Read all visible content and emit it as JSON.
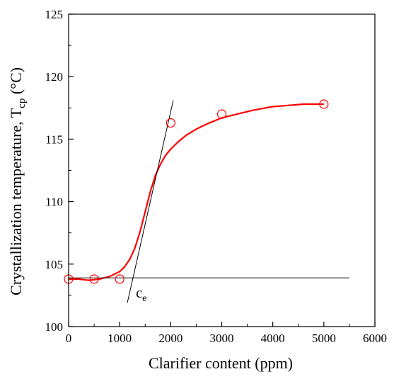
{
  "chart_data": {
    "type": "scatter",
    "title": "",
    "xlabel": "Clarifier content (ppm)",
    "ylabel": {
      "main": "Crystallization temperature, T",
      "subscript": "cp",
      "unit": "(°C)"
    },
    "xlim": [
      0,
      6000
    ],
    "ylim": [
      100,
      125
    ],
    "xticks": [
      0,
      1000,
      2000,
      3000,
      4000,
      5000,
      6000
    ],
    "yticks": [
      100,
      105,
      110,
      115,
      120,
      125
    ],
    "grid": false,
    "legend": "none",
    "series": [
      {
        "kind": "markers",
        "marker": "open-circle",
        "color": "#ff0000",
        "x": [
          0,
          500,
          1000,
          2000,
          3000,
          5000
        ],
        "y": [
          103.8,
          103.8,
          103.8,
          116.3,
          117.0,
          117.8
        ]
      },
      {
        "kind": "fit-curve",
        "color": "#ff0000",
        "x": [
          0,
          200,
          400,
          600,
          800,
          1000,
          1100,
          1200,
          1300,
          1400,
          1500,
          1600,
          1700,
          1800,
          1900,
          2000,
          2150,
          2300,
          2500,
          2700,
          3000,
          3300,
          3600,
          4000,
          4300,
          4600,
          5000
        ],
        "y": [
          103.8,
          103.8,
          103.7,
          103.8,
          104.0,
          104.4,
          104.8,
          105.4,
          106.3,
          107.6,
          109.2,
          110.8,
          112.1,
          113.0,
          113.7,
          114.2,
          114.8,
          115.3,
          115.8,
          116.2,
          116.7,
          117.0,
          117.3,
          117.6,
          117.7,
          117.8,
          117.8
        ]
      },
      {
        "kind": "baseline",
        "color": "#000000",
        "x": [
          0,
          5500
        ],
        "y": [
          103.9,
          103.9
        ]
      },
      {
        "kind": "tangent",
        "color": "#000000",
        "x": [
          1150,
          2050
        ],
        "y": [
          101.9,
          118.1
        ]
      }
    ],
    "annotations": [
      {
        "text": "c",
        "subscript": "e",
        "x": 1320,
        "y": 102.9
      }
    ]
  }
}
